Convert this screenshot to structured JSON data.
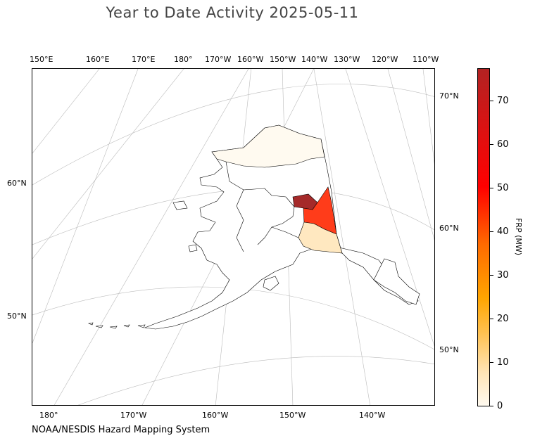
{
  "title": "Year to Date Activity 2025-05-11",
  "credit": "NOAA/NESDIS Hazard Mapping System",
  "top_lon_labels": [
    "150°E",
    "160°E",
    "170°E",
    "180°",
    "170°W",
    "160°W",
    "150°W",
    "140°W",
    "130°W",
    "120°W",
    "110°W"
  ],
  "bottom_lon_labels": [
    "180°",
    "170°W",
    "160°W",
    "150°W",
    "140°W"
  ],
  "left_lat_labels": [
    "60°N",
    "50°N"
  ],
  "right_lat_labels": [
    "70°N",
    "60°N",
    "50°N"
  ],
  "colorbar": {
    "label": "FRP (MW)",
    "ticks": [
      "0",
      "10",
      "20",
      "30",
      "40",
      "50",
      "60",
      "70"
    ],
    "colors": [
      "#fffaf0",
      "#ffe4b5",
      "#ffa500",
      "#ff0000",
      "#b22222"
    ]
  },
  "regions": {
    "north_slope": "#fffaf0",
    "yukon_koyukuk_east": "#a52a2a",
    "fairbanks_area": "#ff3c1a",
    "southeast_fairbanks": "#ffe8c0"
  }
}
